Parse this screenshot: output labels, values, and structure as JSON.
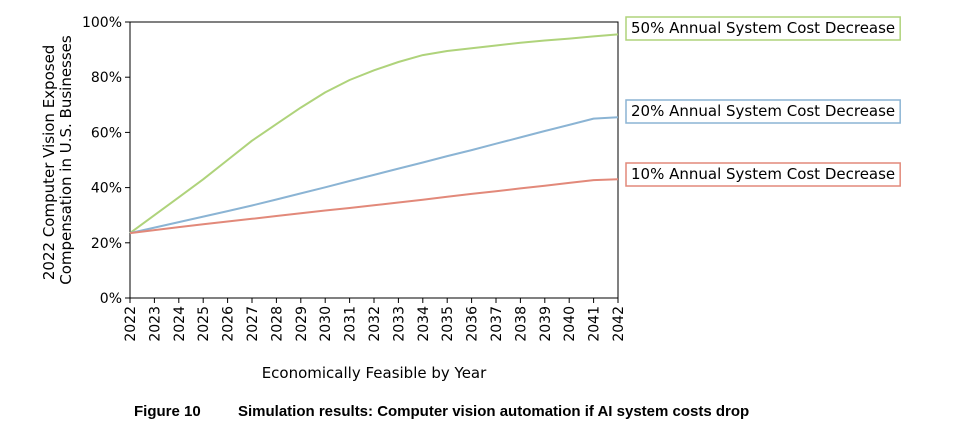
{
  "chart_data": {
    "type": "line",
    "xlabel": "Economically Feasible by Year",
    "ylabel_lines": [
      "2022 Computer Vision Exposed",
      "Compensation in U.S. Businesses"
    ],
    "x": [
      "2022",
      "2023",
      "2024",
      "2025",
      "2026",
      "2027",
      "2028",
      "2029",
      "2030",
      "2031",
      "2032",
      "2033",
      "2034",
      "2035",
      "2036",
      "2037",
      "2038",
      "2039",
      "2040",
      "2041",
      "2042"
    ],
    "yticks": [
      "0%",
      "20%",
      "40%",
      "60%",
      "80%",
      "100%"
    ],
    "ylim": [
      0,
      100
    ],
    "grid": false,
    "legend_placement": "right, labels at line ends",
    "series": [
      {
        "name": "50% Annual System Cost Decrease",
        "color": "#afd37b",
        "values": [
          23.5,
          30,
          36.5,
          43,
          50,
          57,
          63,
          69,
          74.5,
          79,
          82.5,
          85.5,
          88,
          89.5,
          90.5,
          91.5,
          92.5,
          93.3,
          94,
          94.8,
          95.5
        ]
      },
      {
        "name": "20% Annual System Cost Decrease",
        "color": "#8bb4d4",
        "values": [
          23.5,
          25.5,
          27.5,
          29.5,
          31.5,
          33.5,
          35.7,
          37.9,
          40.1,
          42.4,
          44.6,
          46.9,
          49.1,
          51.4,
          53.6,
          55.9,
          58.2,
          60.5,
          62.7,
          65,
          65.5
        ]
      },
      {
        "name": "10% Annual System Cost Decrease",
        "color": "#e2897a",
        "values": [
          23.5,
          24.6,
          25.7,
          26.7,
          27.7,
          28.7,
          29.7,
          30.7,
          31.7,
          32.6,
          33.6,
          34.6,
          35.6,
          36.7,
          37.7,
          38.7,
          39.7,
          40.7,
          41.7,
          42.7,
          43
        ]
      }
    ]
  },
  "caption": {
    "label": "Figure 10",
    "text": "Simulation results: Computer vision automation if AI system costs drop"
  }
}
